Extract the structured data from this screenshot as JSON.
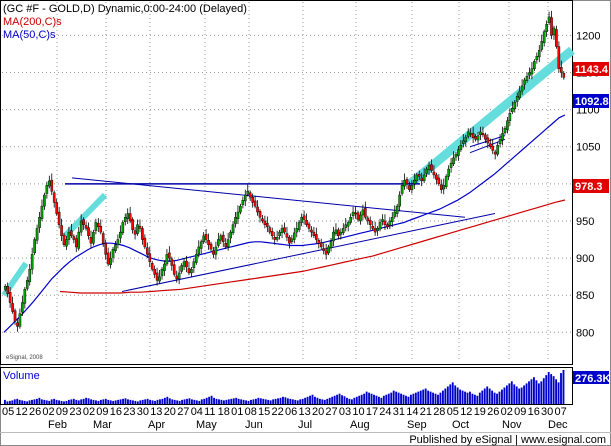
{
  "header": {
    "title": "(GC #F - GOLD,D) Dynamic,0:00-24:00 (Delayed)",
    "ma200_label": "MA(200,C)s",
    "ma50_label": "MA(50,C)s"
  },
  "colors": {
    "up": "#00a000",
    "down": "#ff0000",
    "ma200": "#cc0000",
    "ma50": "#0000cc",
    "trend": "#0000aa",
    "channel": "#66dddd",
    "volume": "#0000cc"
  },
  "chart_data": {
    "type": "candlestick",
    "y_range": [
      760,
      1245
    ],
    "y_ticks": [
      800,
      850,
      900,
      950,
      1000,
      1050,
      1100,
      1150,
      1200
    ],
    "last_price": "1143.4",
    "ma50_last": "1092.8",
    "ma200_last": "978.3",
    "volume_label": "Volume",
    "volume_last": "276.3K",
    "date_labels": [
      "05",
      "12",
      "26",
      "02",
      "09",
      "23",
      "02",
      "09",
      "16",
      "23",
      "30",
      "13",
      "20",
      "27",
      "04",
      "11",
      "18",
      "01",
      "08",
      "15",
      "22",
      "06",
      "13",
      "20",
      "27",
      "03",
      "10",
      "17",
      "24",
      "31",
      "14",
      "21",
      "28",
      "05",
      "12",
      "19",
      "26",
      "02",
      "09",
      "16",
      "30",
      "07"
    ],
    "month_labels": [
      "Feb",
      "Mar",
      "Apr",
      "May",
      "Jun",
      "Jul",
      "Aug",
      "Sep",
      "Oct",
      "Nov",
      "Dec"
    ],
    "closes": [
      862,
      852,
      840,
      828,
      815,
      808,
      825,
      840,
      858,
      870,
      885,
      905,
      925,
      940,
      955,
      970,
      985,
      998,
      1004,
      990,
      975,
      960,
      945,
      930,
      918,
      925,
      935,
      930,
      925,
      915,
      935,
      950,
      945,
      940,
      930,
      920,
      935,
      948,
      942,
      935,
      920,
      905,
      892,
      900,
      912,
      918,
      925,
      935,
      948,
      955,
      960,
      950,
      938,
      932,
      945,
      940,
      925,
      915,
      905,
      895,
      885,
      878,
      870,
      875,
      885,
      892,
      905,
      900,
      890,
      878,
      872,
      880,
      890,
      895,
      888,
      880,
      885,
      895,
      905,
      915,
      922,
      930,
      925,
      918,
      912,
      905,
      915,
      925,
      930,
      922,
      915,
      925,
      935,
      945,
      955,
      962,
      970,
      978,
      985,
      990,
      982,
      975,
      970,
      962,
      955,
      950,
      945,
      942,
      935,
      930,
      925,
      928,
      935,
      940,
      935,
      928,
      920,
      926,
      934,
      940,
      948,
      955,
      952,
      945,
      940,
      935,
      930,
      925,
      920,
      915,
      910,
      905,
      915,
      922,
      935,
      938,
      930,
      935,
      940,
      945,
      948,
      955,
      962,
      960,
      952,
      958,
      965,
      955,
      950,
      945,
      940,
      935,
      940,
      948,
      952,
      945,
      942,
      950,
      955,
      962,
      970,
      985,
      998,
      1005,
      1000,
      992,
      998,
      1005,
      1012,
      1010,
      1004,
      1012,
      1020,
      1025,
      1018,
      1012,
      1006,
      1000,
      992,
      998,
      1010,
      1020,
      1028,
      1035,
      1040,
      1046,
      1052,
      1058,
      1063,
      1070,
      1068,
      1062,
      1060,
      1065,
      1070,
      1066,
      1060,
      1055,
      1050,
      1045,
      1040,
      1052,
      1060,
      1068,
      1075,
      1085,
      1095,
      1102,
      1110,
      1118,
      1125,
      1132,
      1140,
      1145,
      1150,
      1155,
      1165,
      1172,
      1180,
      1192,
      1205,
      1215,
      1225,
      1200,
      1210,
      1185,
      1155,
      1150,
      1143.4
    ],
    "volume_heights": [
      8,
      5,
      6,
      7,
      9,
      10,
      8,
      7,
      6,
      5,
      7,
      8,
      9,
      10,
      12,
      9,
      8,
      7,
      6,
      9,
      10,
      8,
      7,
      6,
      5,
      6,
      8,
      9,
      10,
      8,
      7,
      9,
      10,
      12,
      11,
      9,
      8,
      7,
      6,
      8,
      9,
      10,
      8,
      7,
      6,
      7,
      8,
      9,
      10,
      11,
      9,
      8,
      7,
      6,
      5,
      7,
      8,
      9,
      10,
      8,
      7,
      6,
      8,
      9,
      10,
      12,
      14,
      11,
      9,
      8,
      7,
      6,
      8,
      9,
      10,
      11,
      9,
      8,
      7,
      6,
      9,
      10,
      12,
      14,
      16,
      12,
      10,
      9,
      8,
      7,
      8,
      9,
      10,
      11,
      12,
      10,
      9,
      8,
      7,
      6,
      8,
      9,
      10,
      12,
      11,
      10,
      9,
      8,
      7,
      9,
      10,
      11,
      12,
      14,
      13,
      11,
      10,
      9,
      8,
      7,
      9,
      10,
      12,
      14,
      16,
      18,
      14,
      12,
      10,
      9,
      8,
      10,
      12,
      14,
      16,
      18,
      20,
      17,
      15,
      12,
      10,
      9,
      12,
      14,
      16,
      18,
      20,
      24,
      22,
      20,
      18,
      16,
      14,
      12,
      16,
      18,
      20,
      22,
      26,
      24,
      22,
      20,
      18,
      16,
      14,
      18,
      20,
      22,
      24,
      26,
      28,
      30,
      26,
      24,
      22,
      20,
      18,
      22,
      26,
      30,
      34,
      38,
      42,
      36,
      32,
      28,
      26,
      24,
      22,
      24,
      20,
      18,
      16,
      22,
      26,
      30,
      34,
      30,
      26,
      22,
      20,
      24,
      28,
      32,
      36,
      40,
      44,
      38,
      34,
      30,
      32,
      36,
      40,
      44,
      48,
      52,
      46,
      40,
      44,
      50,
      56,
      62,
      58,
      54,
      48,
      42,
      60,
      66
    ],
    "ma50": [
      800,
      808,
      816,
      824,
      833,
      842,
      852,
      862,
      872,
      880,
      888,
      895,
      901,
      906,
      911,
      915,
      918,
      920,
      920,
      919,
      917,
      914,
      910,
      906,
      902,
      899,
      897,
      896,
      896,
      897,
      899,
      901,
      903,
      905,
      907,
      909,
      911,
      913,
      915,
      917,
      919,
      921,
      922,
      922,
      921,
      920,
      919,
      918,
      917,
      917,
      917,
      918,
      919,
      920,
      922,
      924,
      926,
      928,
      930,
      932,
      934,
      936,
      938,
      940,
      942,
      944,
      946,
      948,
      951,
      954,
      957,
      960,
      963,
      966,
      970,
      974,
      978,
      983,
      988,
      994,
      1000,
      1006,
      1012,
      1019,
      1026,
      1033,
      1040,
      1047,
      1054,
      1061,
      1068,
      1075,
      1082,
      1089,
      1092.8
    ],
    "ma200": [
      855,
      854,
      853,
      853,
      853,
      853,
      853,
      854,
      854,
      855,
      856,
      857,
      858,
      860,
      862,
      864,
      866,
      868,
      870,
      872,
      874,
      876,
      878,
      880,
      882,
      885,
      888,
      891,
      894,
      897,
      900,
      903,
      907,
      911,
      915,
      919,
      923,
      927,
      931,
      935,
      939,
      943,
      947,
      951,
      955,
      959,
      963,
      967,
      971,
      975,
      978.3
    ]
  },
  "footer": {
    "published_by": "Published by eSignal | www.esignal.com",
    "watermark": "eSignal, 2008"
  }
}
